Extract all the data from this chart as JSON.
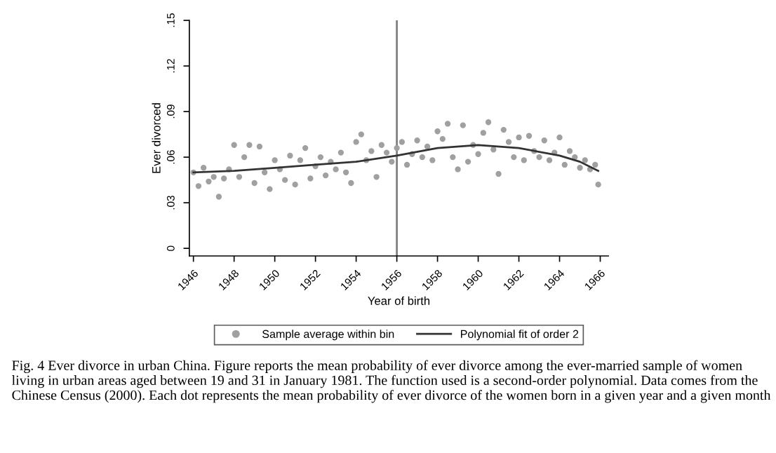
{
  "chart_data": {
    "type": "scatter",
    "xlabel": "Year of birth",
    "ylabel": "Ever divorced",
    "xlim": [
      1945.8,
      1966.4
    ],
    "xticks": [
      1946,
      1948,
      1950,
      1952,
      1954,
      1956,
      1958,
      1960,
      1962,
      1964,
      1966
    ],
    "ylim": [
      -0.005,
      0.15
    ],
    "yticks": [
      {
        "value": 0,
        "label": "0"
      },
      {
        "value": 0.03,
        "label": ".03"
      },
      {
        "value": 0.06,
        "label": ".06"
      },
      {
        "value": 0.09,
        "label": ".09"
      },
      {
        "value": 0.12,
        "label": ".12"
      },
      {
        "value": 0.15,
        "label": ".15"
      }
    ],
    "grid": false,
    "legend": "bottom",
    "marker": "circle",
    "series": [
      {
        "name": "Sample average within bin",
        "color": "#a0a0a0",
        "x": [
          1946.0,
          1946.25,
          1946.5,
          1946.75,
          1947.0,
          1947.25,
          1947.5,
          1947.75,
          1948.0,
          1948.25,
          1948.5,
          1948.75,
          1949.0,
          1949.25,
          1949.5,
          1949.75,
          1950.0,
          1950.25,
          1950.5,
          1950.75,
          1951.0,
          1951.25,
          1951.5,
          1951.75,
          1952.0,
          1952.25,
          1952.5,
          1952.75,
          1953.0,
          1953.25,
          1953.5,
          1953.75,
          1954.0,
          1954.25,
          1954.5,
          1954.75,
          1955.0,
          1955.25,
          1955.5,
          1955.75,
          1956.0,
          1956.25,
          1956.5,
          1956.75,
          1957.0,
          1957.25,
          1957.5,
          1957.75,
          1958.0,
          1958.25,
          1958.5,
          1958.75,
          1959.0,
          1959.25,
          1959.5,
          1959.75,
          1960.0,
          1960.25,
          1960.5,
          1960.75,
          1961.0,
          1961.25,
          1961.5,
          1961.75,
          1962.0,
          1962.25,
          1962.5,
          1962.75,
          1963.0,
          1963.25,
          1963.5,
          1963.75,
          1964.0,
          1964.25,
          1964.5,
          1964.75,
          1965.0,
          1965.25,
          1965.5,
          1965.75,
          1965.9
        ],
        "values": [
          0.05,
          0.041,
          0.053,
          0.044,
          0.047,
          0.034,
          0.046,
          0.052,
          0.068,
          0.047,
          0.06,
          0.068,
          0.043,
          0.067,
          0.05,
          0.039,
          0.058,
          0.052,
          0.045,
          0.061,
          0.042,
          0.058,
          0.066,
          0.046,
          0.054,
          0.06,
          0.048,
          0.057,
          0.052,
          0.063,
          0.05,
          0.043,
          0.07,
          0.075,
          0.058,
          0.064,
          0.047,
          0.068,
          0.063,
          0.057,
          0.066,
          0.07,
          0.055,
          0.062,
          0.071,
          0.06,
          0.067,
          0.058,
          0.077,
          0.072,
          0.082,
          0.06,
          0.052,
          0.081,
          0.057,
          0.068,
          0.062,
          0.076,
          0.083,
          0.065,
          0.049,
          0.078,
          0.07,
          0.06,
          0.073,
          0.058,
          0.074,
          0.064,
          0.06,
          0.071,
          0.058,
          0.063,
          0.073,
          0.055,
          0.064,
          0.06,
          0.053,
          0.058,
          0.052,
          0.055,
          0.042
        ]
      },
      {
        "name": "Polynomial fit of order 2",
        "type": "line",
        "color": "#333333",
        "marker": "none",
        "line_style": "solid",
        "x": [
          1946.0,
          1948,
          1950,
          1952,
          1954,
          1956,
          1958,
          1960,
          1962,
          1964,
          1965,
          1965.9
        ],
        "values": [
          0.05,
          0.051,
          0.053,
          0.055,
          0.057,
          0.061,
          0.066,
          0.068,
          0.066,
          0.061,
          0.057,
          0.051
        ]
      }
    ],
    "ref_lines": [
      {
        "axis": "x",
        "value": 1956,
        "color": "#808080",
        "line_style": "solid"
      }
    ],
    "annotations": [
      "Fig. 4 Ever divorce in urban China. Figure reports the mean probability of ever divorce among the ever-married sample of women living in urban areas aged between 19 and 31 in January 1981. The function used is a second-order polynomial. Data comes from the Chinese Census (2000). Each dot represents the mean probability of ever divorce of the women born in a given year and a given month"
    ]
  }
}
